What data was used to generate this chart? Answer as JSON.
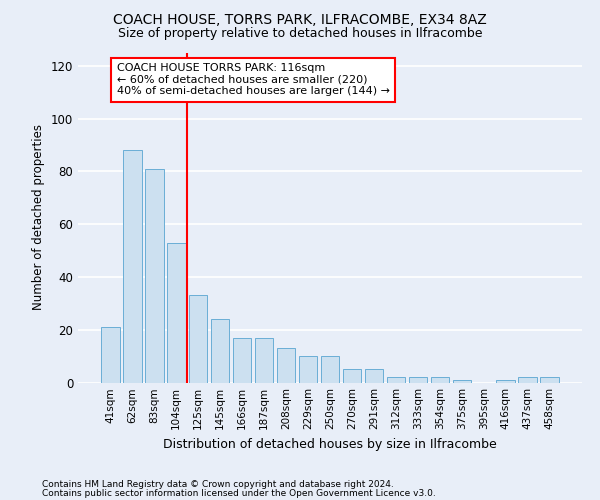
{
  "title": "COACH HOUSE, TORRS PARK, ILFRACOMBE, EX34 8AZ",
  "subtitle": "Size of property relative to detached houses in Ilfracombe",
  "xlabel": "Distribution of detached houses by size in Ilfracombe",
  "ylabel": "Number of detached properties",
  "categories": [
    "41sqm",
    "62sqm",
    "83sqm",
    "104sqm",
    "125sqm",
    "145sqm",
    "166sqm",
    "187sqm",
    "208sqm",
    "229sqm",
    "250sqm",
    "270sqm",
    "291sqm",
    "312sqm",
    "333sqm",
    "354sqm",
    "375sqm",
    "395sqm",
    "416sqm",
    "437sqm",
    "458sqm"
  ],
  "values": [
    21,
    88,
    81,
    53,
    33,
    24,
    17,
    17,
    13,
    10,
    10,
    5,
    5,
    2,
    2,
    2,
    1,
    0,
    1,
    2,
    2
  ],
  "bar_color": "#cce0f0",
  "bar_edge_color": "#6aaed6",
  "annotation_text": "COACH HOUSE TORRS PARK: 116sqm\n← 60% of detached houses are smaller (220)\n40% of semi-detached houses are larger (144) →",
  "annotation_box_color": "white",
  "annotation_box_edge_color": "red",
  "marker_line_color": "red",
  "ylim": [
    0,
    125
  ],
  "yticks": [
    0,
    20,
    40,
    60,
    80,
    100,
    120
  ],
  "footer_line1": "Contains HM Land Registry data © Crown copyright and database right 2024.",
  "footer_line2": "Contains public sector information licensed under the Open Government Licence v3.0.",
  "bg_color": "#e8eef8",
  "plot_bg_color": "#e8eef8",
  "grid_color": "white"
}
